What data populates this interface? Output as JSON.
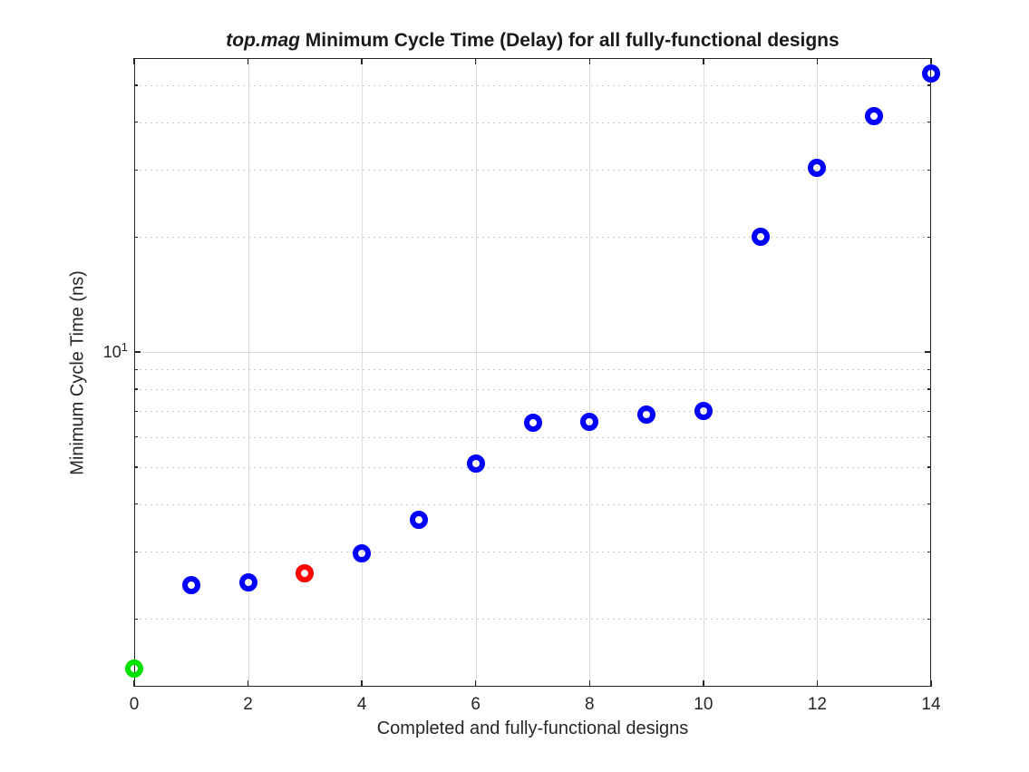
{
  "chart_data": {
    "type": "scatter",
    "title_prefix": "top.mag",
    "title_rest": " Minimum Cycle Time (Delay) for all fully-functional designs",
    "xlabel": "Completed and fully-functional designs",
    "ylabel": "Minimum Cycle Time (ns)",
    "xscale": "linear",
    "yscale": "log",
    "xlim": [
      0,
      14
    ],
    "ylim": [
      1.33,
      58.9
    ],
    "grid": "on",
    "legend": "none",
    "x_major_ticks": [
      0,
      2,
      4,
      6,
      8,
      10,
      12,
      14
    ],
    "x_tick_labels": [
      "0",
      "2",
      "4",
      "6",
      "8",
      "10",
      "12",
      "14"
    ],
    "y_major_tick": {
      "value": 10,
      "label_base": "10",
      "label_exp": "1"
    },
    "y_minor_ticks": [
      2,
      3,
      4,
      5,
      6,
      7,
      8,
      9,
      20,
      30,
      40,
      50
    ],
    "points": [
      {
        "x": 0,
        "y": 1.48,
        "color": "green"
      },
      {
        "x": 1,
        "y": 2.46,
        "color": "blue"
      },
      {
        "x": 2,
        "y": 2.5,
        "color": "blue"
      },
      {
        "x": 3,
        "y": 2.64,
        "color": "red"
      },
      {
        "x": 4,
        "y": 2.97,
        "color": "blue"
      },
      {
        "x": 5,
        "y": 3.63,
        "color": "blue"
      },
      {
        "x": 6,
        "y": 5.11,
        "color": "blue"
      },
      {
        "x": 7,
        "y": 6.55,
        "color": "blue"
      },
      {
        "x": 8,
        "y": 6.58,
        "color": "blue"
      },
      {
        "x": 9,
        "y": 6.88,
        "color": "blue"
      },
      {
        "x": 10,
        "y": 7.01,
        "color": "blue"
      },
      {
        "x": 11,
        "y": 20.1,
        "color": "blue"
      },
      {
        "x": 12,
        "y": 30.4,
        "color": "blue"
      },
      {
        "x": 13,
        "y": 41.6,
        "color": "blue"
      },
      {
        "x": 14,
        "y": 53.6,
        "color": "blue"
      }
    ],
    "colors": {
      "blue": "#0000ff",
      "red": "#ff0000",
      "green": "#00e100",
      "axis": "#262626",
      "grid_major": "#dcdcdc",
      "grid_minor": "#c8c8c8",
      "background": "#ffffff"
    }
  }
}
